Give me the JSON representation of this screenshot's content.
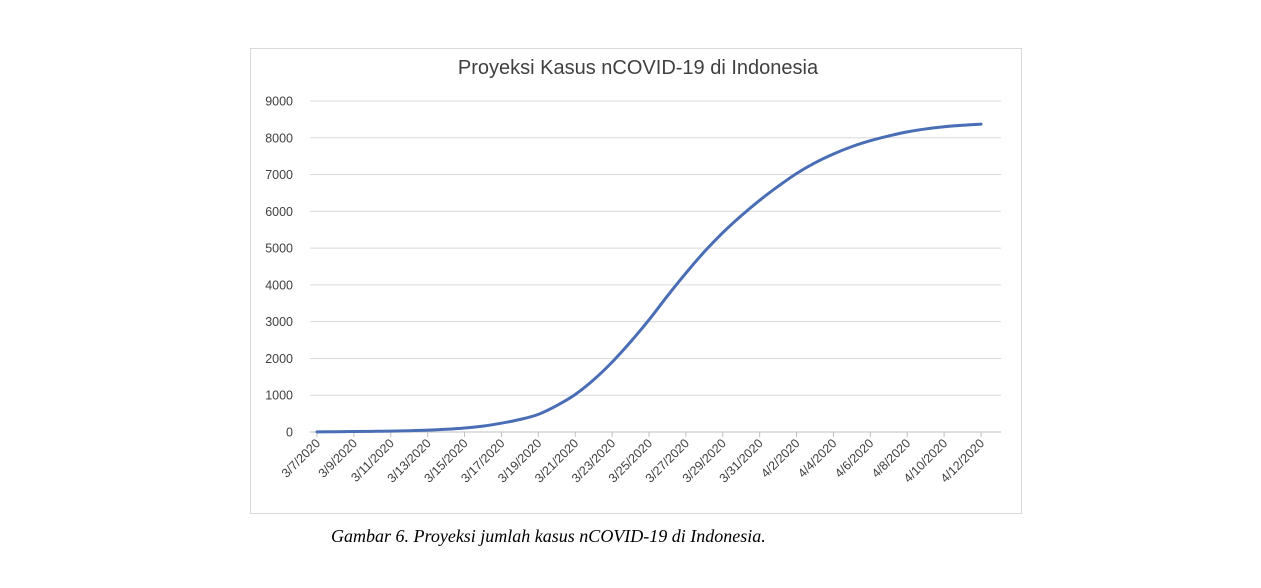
{
  "chart_data": {
    "type": "line",
    "title": "Proyeksi Kasus nCOVID-19 di Indonesia",
    "xlabel": "",
    "ylabel": "",
    "ylim": [
      0,
      9000
    ],
    "y_ticks": [
      0,
      1000,
      2000,
      3000,
      4000,
      5000,
      6000,
      7000,
      8000,
      9000
    ],
    "x_tick_labels": [
      "3/7/2020",
      "3/9/2020",
      "3/11/2020",
      "3/13/2020",
      "3/15/2020",
      "3/17/2020",
      "3/19/2020",
      "3/21/2020",
      "3/23/2020",
      "3/25/2020",
      "3/27/2020",
      "3/29/2020",
      "3/31/2020",
      "4/2/2020",
      "4/4/2020",
      "4/6/2020",
      "4/8/2020",
      "4/10/2020",
      "4/12/2020"
    ],
    "grid": true,
    "legend": "none",
    "line_color": "#4a6eb5",
    "x": [
      "3/7/2020",
      "3/8/2020",
      "3/9/2020",
      "3/10/2020",
      "3/11/2020",
      "3/12/2020",
      "3/13/2020",
      "3/14/2020",
      "3/15/2020",
      "3/16/2020",
      "3/17/2020",
      "3/18/2020",
      "3/19/2020",
      "3/20/2020",
      "3/21/2020",
      "3/22/2020",
      "3/23/2020",
      "3/24/2020",
      "3/25/2020",
      "3/26/2020",
      "3/27/2020",
      "3/28/2020",
      "3/29/2020",
      "3/30/2020",
      "3/31/2020",
      "4/1/2020",
      "4/2/2020",
      "4/3/2020",
      "4/4/2020",
      "4/5/2020",
      "4/6/2020",
      "4/7/2020",
      "4/8/2020",
      "4/9/2020",
      "4/10/2020",
      "4/11/2020",
      "4/12/2020"
    ],
    "series": [
      {
        "values": [
          5,
          8,
          12,
          18,
          25,
          35,
          50,
          75,
          110,
          160,
          240,
          340,
          480,
          720,
          1020,
          1420,
          1900,
          2450,
          3050,
          3700,
          4320,
          4900,
          5420,
          5880,
          6300,
          6680,
          7030,
          7320,
          7560,
          7760,
          7920,
          8050,
          8160,
          8240,
          8300,
          8340,
          8370
        ]
      }
    ]
  },
  "caption": "Gambar 6. Proyeksi jumlah kasus nCOVID-19 di Indonesia."
}
